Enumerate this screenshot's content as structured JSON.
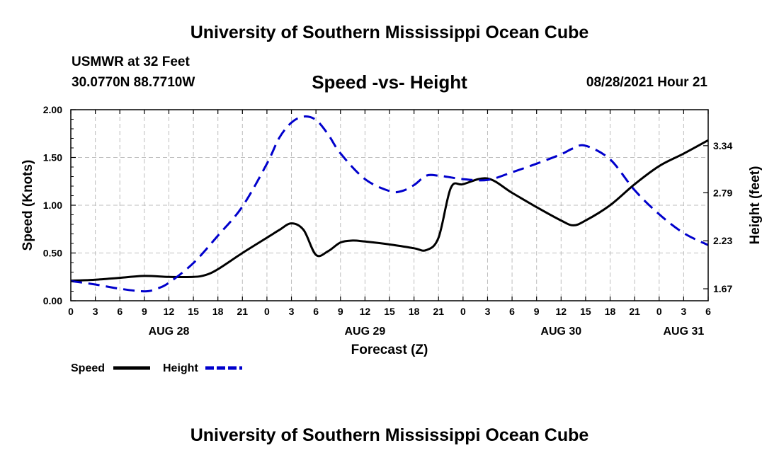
{
  "header": {
    "title_top": "University of Southern Mississippi Ocean Cube",
    "station": "USMWR at 32 Feet",
    "coords": "30.0770N  88.7710W",
    "chart_title": "Speed -vs- Height",
    "datetime": "08/28/2021 Hour 21",
    "title_bottom": "University of Southern Mississippi Ocean Cube"
  },
  "chart_data": {
    "type": "line",
    "title": "Speed -vs- Height",
    "xlabel": "Forecast (Z)",
    "ylabel": "Speed (Knots)",
    "y2label": "Height (feet)",
    "x_hours": [
      0,
      3,
      6,
      9,
      12,
      15,
      18,
      21,
      24,
      27,
      30,
      33,
      36,
      39,
      42,
      45,
      48,
      51,
      54,
      57,
      60,
      63,
      66,
      69,
      72,
      75,
      78
    ],
    "x_tick_labels": [
      "0",
      "3",
      "6",
      "9",
      "12",
      "15",
      "18",
      "21",
      "0",
      "3",
      "6",
      "9",
      "12",
      "15",
      "18",
      "21",
      "0",
      "3",
      "6",
      "9",
      "12",
      "15",
      "18",
      "21",
      "0",
      "3",
      "6"
    ],
    "date_labels": [
      {
        "label": "AUG 28",
        "hour": 12
      },
      {
        "label": "AUG 29",
        "hour": 36
      },
      {
        "label": "AUG 30",
        "hour": 60
      },
      {
        "label": "AUG 31",
        "hour": 75
      }
    ],
    "xlim": [
      0,
      78
    ],
    "ylim": [
      0,
      2.0
    ],
    "y_ticks": [
      "0.00",
      "0.50",
      "1.00",
      "1.50",
      "2.00"
    ],
    "y2lim": [
      1.53,
      3.76
    ],
    "y2_ticks": [
      "1.67",
      "2.23",
      "2.79",
      "3.34"
    ],
    "grid": true,
    "series": [
      {
        "name": "Speed",
        "axis": "left",
        "color": "#000000",
        "dash": "solid",
        "x": [
          0,
          3,
          6,
          9,
          12,
          15,
          16.5,
          18,
          21,
          24,
          25.5,
          27,
          28.5,
          30,
          31.5,
          33,
          34.5,
          36,
          39,
          42,
          43.5,
          45,
          46.5,
          48,
          51,
          54,
          57,
          60,
          61.5,
          63,
          66,
          69,
          72,
          75,
          78
        ],
        "values": [
          0.21,
          0.22,
          0.24,
          0.26,
          0.25,
          0.25,
          0.27,
          0.33,
          0.5,
          0.66,
          0.74,
          0.81,
          0.74,
          0.48,
          0.52,
          0.61,
          0.63,
          0.62,
          0.59,
          0.55,
          0.53,
          0.66,
          1.18,
          1.22,
          1.28,
          1.13,
          0.98,
          0.84,
          0.79,
          0.84,
          1.0,
          1.22,
          1.41,
          1.54,
          1.68
        ]
      },
      {
        "name": "Height",
        "axis": "right",
        "color": "#0000cc",
        "dash": "dashed",
        "x": [
          0,
          3,
          6,
          9,
          10.5,
          12,
          15,
          18,
          21,
          24,
          25.5,
          27,
          28.5,
          30,
          31.5,
          33,
          36,
          39,
          40.5,
          42,
          43.5,
          45,
          46.5,
          48,
          51,
          54,
          57,
          60,
          61.5,
          63,
          66,
          69,
          72,
          75,
          78
        ],
        "values": [
          1.76,
          1.72,
          1.67,
          1.64,
          1.67,
          1.74,
          1.97,
          2.29,
          2.63,
          3.13,
          3.43,
          3.61,
          3.68,
          3.64,
          3.47,
          3.25,
          2.95,
          2.81,
          2.81,
          2.88,
          2.99,
          2.99,
          2.97,
          2.95,
          2.94,
          3.03,
          3.13,
          3.24,
          3.31,
          3.34,
          3.18,
          2.82,
          2.54,
          2.32,
          2.18
        ]
      }
    ],
    "legend": [
      {
        "label": "Speed",
        "color": "#000000",
        "dash": "solid"
      },
      {
        "label": "Height",
        "color": "#0000cc",
        "dash": "dashed"
      }
    ],
    "legend_position": "bottom-left"
  }
}
